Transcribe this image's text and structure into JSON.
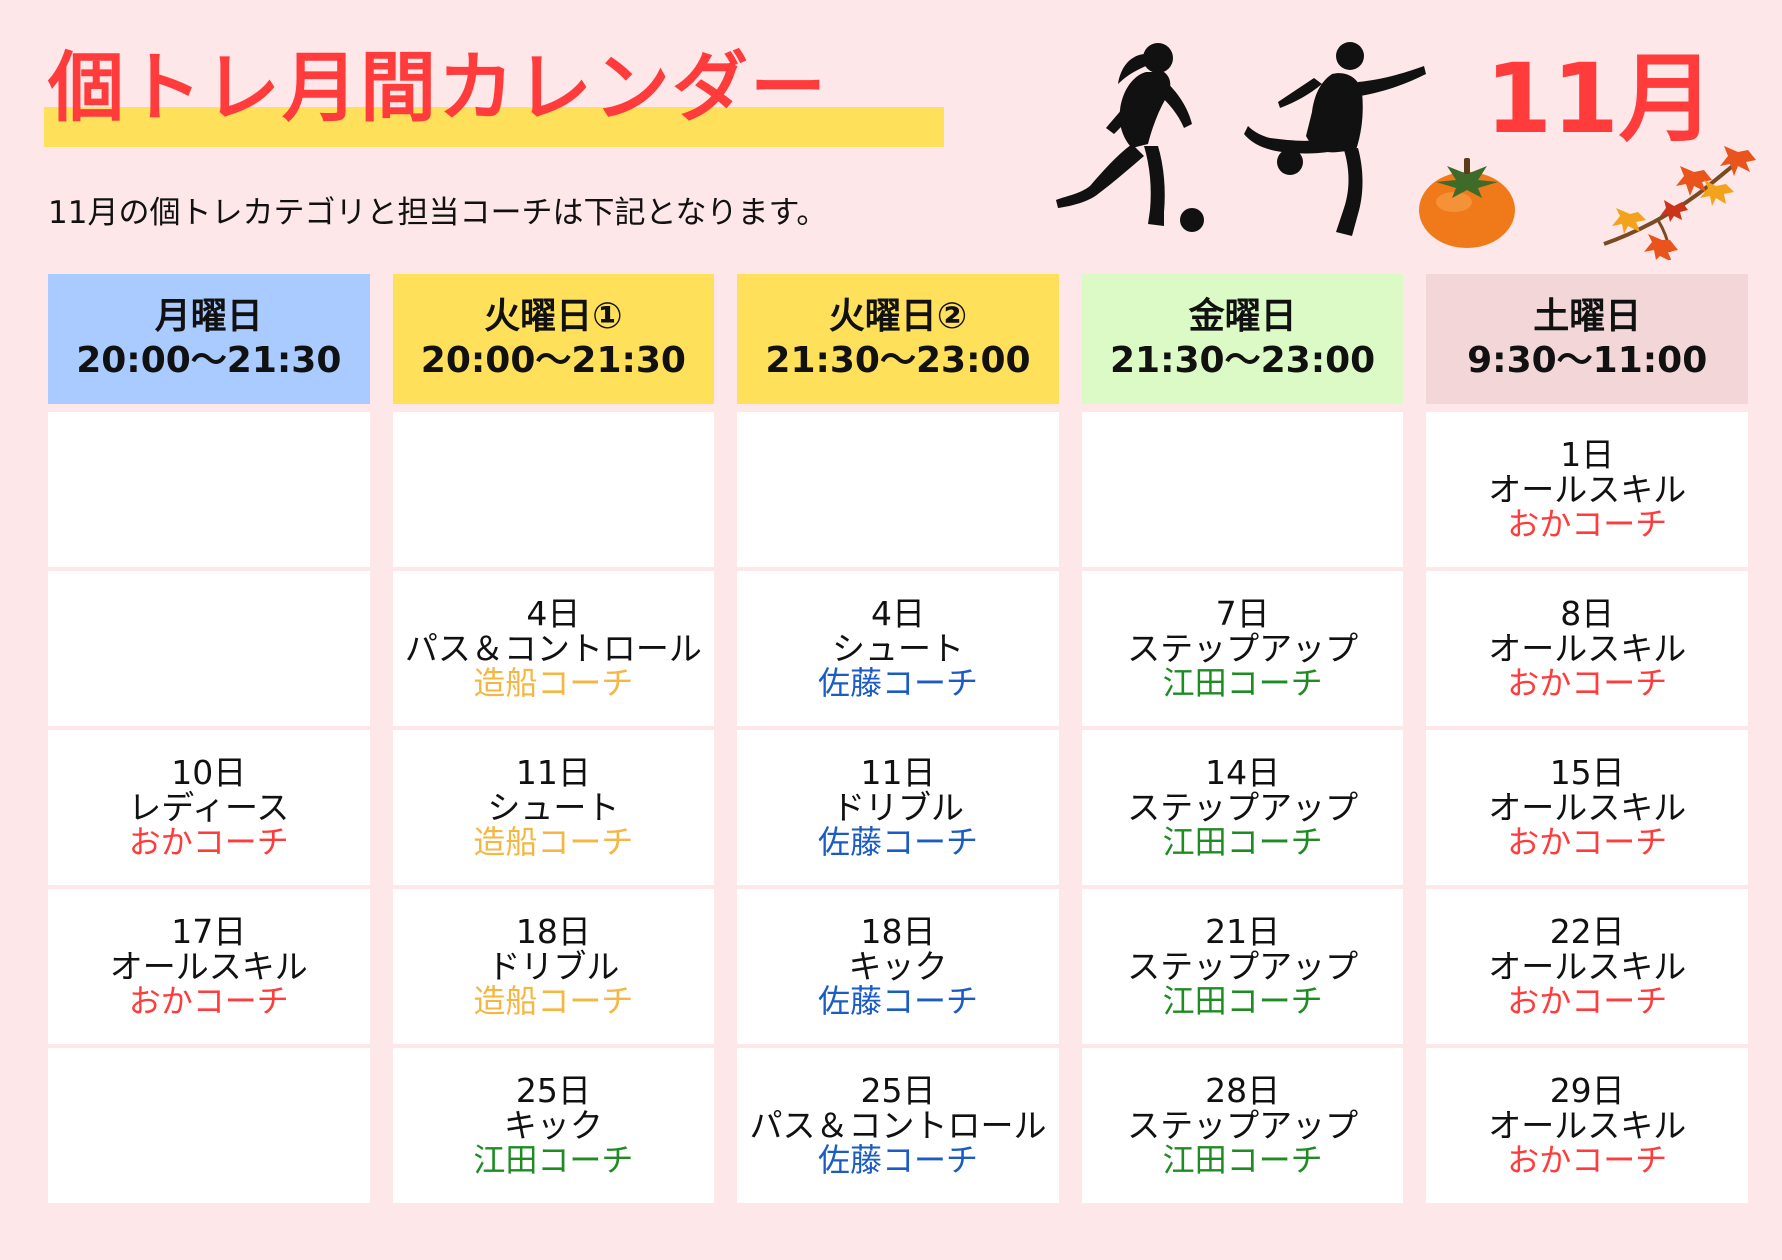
{
  "header": {
    "title": "個トレ月間カレンダー",
    "subtitle": "11月の個トレカテゴリと担当コーチは下記となります。",
    "month": "11月"
  },
  "colors": {
    "background": "#fde7e8",
    "title": "#ff3b3b",
    "title_highlight": "#ffe05a",
    "monday_header": "#a9cbff",
    "tuesday_header": "#ffe05a",
    "friday_header": "#dcfac6",
    "saturday_header": "#f2d6d8",
    "coach_oka": "#ff3b3b",
    "coach_zousen": "#f5b642",
    "coach_sato": "#1a5cc4",
    "coach_eda": "#1e8c23"
  },
  "icons": [
    "female-soccer-player-icon",
    "male-soccer-player-icon",
    "persimmon-icon",
    "autumn-leaves-icon"
  ],
  "columns": [
    {
      "day": "月曜日",
      "time": "20:00～21:30",
      "color": "#a9cbff",
      "cells": [
        {
          "date": "",
          "category": "",
          "coach": "",
          "coach_color": ""
        },
        {
          "date": "",
          "category": "",
          "coach": "",
          "coach_color": ""
        },
        {
          "date": "10日",
          "category": "レディース",
          "coach": "おかコーチ",
          "coach_color": "#ff3b3b"
        },
        {
          "date": "17日",
          "category": "オールスキル",
          "coach": "おかコーチ",
          "coach_color": "#ff3b3b"
        },
        {
          "date": "",
          "category": "",
          "coach": "",
          "coach_color": ""
        }
      ]
    },
    {
      "day": "火曜日①",
      "time": "20:00～21:30",
      "color": "#ffe05a",
      "cells": [
        {
          "date": "",
          "category": "",
          "coach": "",
          "coach_color": ""
        },
        {
          "date": "4日",
          "category": "パス＆コントロール",
          "coach": "造船コーチ",
          "coach_color": "#f5b642"
        },
        {
          "date": "11日",
          "category": "シュート",
          "coach": "造船コーチ",
          "coach_color": "#f5b642"
        },
        {
          "date": "18日",
          "category": "ドリブル",
          "coach": "造船コーチ",
          "coach_color": "#f5b642"
        },
        {
          "date": "25日",
          "category": "キック",
          "coach": "江田コーチ",
          "coach_color": "#1e8c23"
        }
      ]
    },
    {
      "day": "火曜日②",
      "time": "21:30～23:00",
      "color": "#ffe05a",
      "cells": [
        {
          "date": "",
          "category": "",
          "coach": "",
          "coach_color": ""
        },
        {
          "date": "4日",
          "category": "シュート",
          "coach": "佐藤コーチ",
          "coach_color": "#1a5cc4"
        },
        {
          "date": "11日",
          "category": "ドリブル",
          "coach": "佐藤コーチ",
          "coach_color": "#1a5cc4"
        },
        {
          "date": "18日",
          "category": "キック",
          "coach": "佐藤コーチ",
          "coach_color": "#1a5cc4"
        },
        {
          "date": "25日",
          "category": "パス＆コントロール",
          "coach": "佐藤コーチ",
          "coach_color": "#1a5cc4"
        }
      ]
    },
    {
      "day": "金曜日",
      "time": "21:30～23:00",
      "color": "#dcfac6",
      "cells": [
        {
          "date": "",
          "category": "",
          "coach": "",
          "coach_color": ""
        },
        {
          "date": "7日",
          "category": "ステップアップ",
          "coach": "江田コーチ",
          "coach_color": "#1e8c23"
        },
        {
          "date": "14日",
          "category": "ステップアップ",
          "coach": "江田コーチ",
          "coach_color": "#1e8c23"
        },
        {
          "date": "21日",
          "category": "ステップアップ",
          "coach": "江田コーチ",
          "coach_color": "#1e8c23"
        },
        {
          "date": "28日",
          "category": "ステップアップ",
          "coach": "江田コーチ",
          "coach_color": "#1e8c23"
        }
      ]
    },
    {
      "day": "土曜日",
      "time": "9:30～11:00",
      "color": "#f2d6d8",
      "cells": [
        {
          "date": "1日",
          "category": "オールスキル",
          "coach": "おかコーチ",
          "coach_color": "#ff3b3b"
        },
        {
          "date": "8日",
          "category": "オールスキル",
          "coach": "おかコーチ",
          "coach_color": "#ff3b3b"
        },
        {
          "date": "15日",
          "category": "オールスキル",
          "coach": "おかコーチ",
          "coach_color": "#ff3b3b"
        },
        {
          "date": "22日",
          "category": "オールスキル",
          "coach": "おかコーチ",
          "coach_color": "#ff3b3b"
        },
        {
          "date": "29日",
          "category": "オールスキル",
          "coach": "おかコーチ",
          "coach_color": "#ff3b3b"
        }
      ]
    }
  ]
}
